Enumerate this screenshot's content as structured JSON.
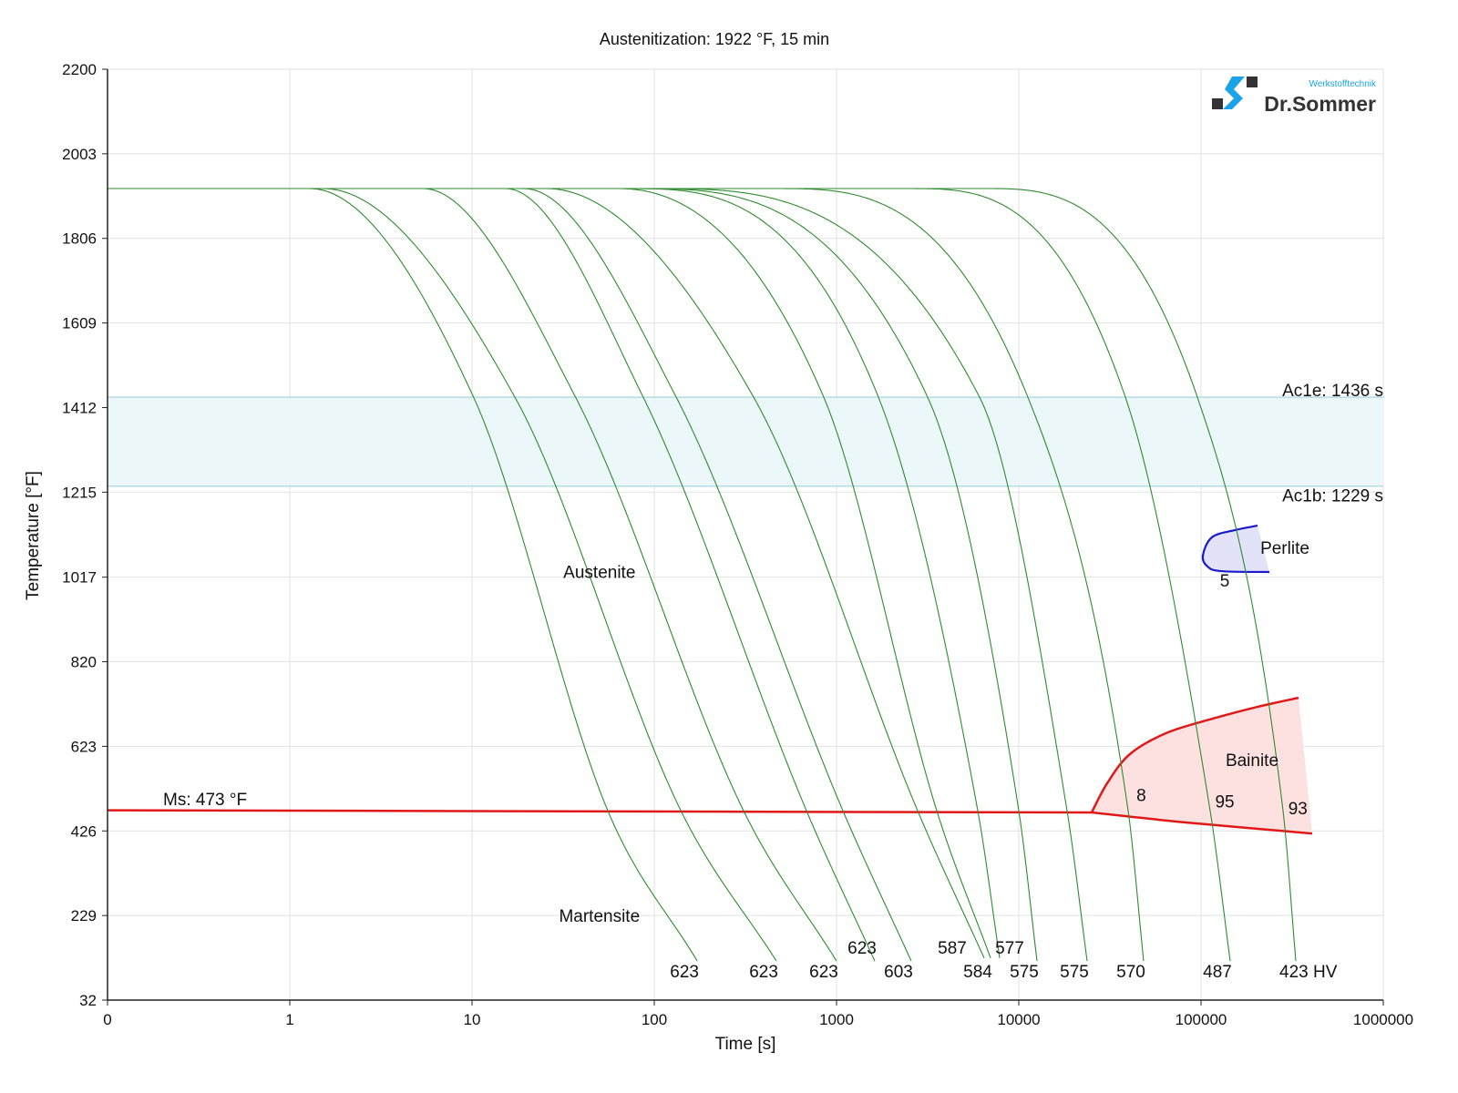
{
  "chart_data": {
    "type": "line",
    "title": "Austenitization: 1922 °F, 15 min",
    "xlabel": "Time [s]",
    "ylabel": "Temperature [°F]",
    "xscale": "log",
    "xlim": [
      0.1,
      1000000
    ],
    "ylim": [
      32,
      2200
    ],
    "grid": true,
    "x_ticks": [
      0.1,
      1,
      10,
      100,
      1000,
      10000,
      100000,
      1000000
    ],
    "x_tick_labels": [
      "0",
      "1",
      "10",
      "100",
      "1000",
      "10000",
      "100000",
      "1000000"
    ],
    "y_ticks": [
      32,
      229,
      426,
      623,
      820,
      1017,
      1215,
      1412,
      1609,
      1806,
      2003,
      2200
    ],
    "y_tick_labels": [
      "32",
      "229",
      "426",
      "623",
      "820",
      "1017",
      "1215",
      "1412",
      "1609",
      "1806",
      "2003",
      "2200"
    ],
    "austenitization_temp": 1922,
    "cooling_curves": [
      {
        "hardness": "623",
        "points": [
          [
            1.29,
            1922
          ],
          [
            10.2,
            1436
          ],
          [
            55.6,
            473
          ],
          [
            172,
            123
          ]
        ]
      },
      {
        "hardness": "623",
        "points": [
          [
            1.53,
            1922
          ],
          [
            17.2,
            1436
          ],
          [
            140,
            473
          ],
          [
            468,
            123
          ]
        ]
      },
      {
        "hardness": "623",
        "points": [
          [
            5.4,
            1922
          ],
          [
            37,
            1436
          ],
          [
            309,
            473
          ],
          [
            1000,
            123
          ]
        ]
      },
      {
        "hardness": "623",
        "points": [
          [
            15.3,
            1922
          ],
          [
            87,
            1436
          ],
          [
            684,
            473
          ],
          [
            1622,
            123
          ]
        ]
      },
      {
        "hardness": "603",
        "points": [
          [
            19.3,
            1922
          ],
          [
            132,
            1436
          ],
          [
            1084,
            473
          ],
          [
            2570,
            123
          ]
        ]
      },
      {
        "hardness": "587",
        "points": [
          [
            25.7,
            1922
          ],
          [
            351,
            1436
          ],
          [
            2786,
            473
          ],
          [
            6457,
            130
          ]
        ]
      },
      {
        "hardness": "584",
        "points": [
          [
            64.6,
            1922
          ],
          [
            851,
            1436
          ],
          [
            3548,
            473
          ],
          [
            7000,
            130
          ]
        ]
      },
      {
        "hardness": "577",
        "points": [
          [
            72.4,
            1922
          ],
          [
            1698,
            1436
          ],
          [
            5957,
            473
          ],
          [
            7852,
            130
          ]
        ]
      },
      {
        "hardness": "575",
        "points": [
          [
            81.3,
            1922
          ],
          [
            3162,
            1436
          ],
          [
            10000,
            473
          ],
          [
            12589,
            123
          ]
        ]
      },
      {
        "hardness": "575",
        "points": [
          [
            102,
            1922
          ],
          [
            6095,
            1436
          ],
          [
            18408,
            473
          ],
          [
            23714,
            123
          ]
        ]
      },
      {
        "hardness": "570",
        "points": [
          [
            513,
            1922
          ],
          [
            11220,
            1436
          ],
          [
            39811,
            473
          ],
          [
            48417,
            123
          ]
        ]
      },
      {
        "hardness": "487",
        "points": [
          [
            2570,
            1922
          ],
          [
            38459,
            1436
          ],
          [
            112202,
            473
          ],
          [
            144544,
            123
          ]
        ]
      },
      {
        "hardness": "423 HV",
        "points": [
          [
            7244,
            1922
          ],
          [
            95499,
            1436
          ],
          [
            281838,
            473
          ],
          [
            331131,
            123
          ]
        ]
      }
    ],
    "ac1e": {
      "label": "Ac1e: 1436 s",
      "temp": 1436
    },
    "ac1b": {
      "label": "Ac1b: 1229 s",
      "temp": 1229
    },
    "ms": {
      "label": "Ms: 473 °F",
      "points": [
        [
          0.1,
          474
        ],
        [
          25119,
          469
        ]
      ]
    },
    "bainite": {
      "label": "Bainite",
      "upper": [
        [
          25119,
          469
        ],
        [
          30549,
          537
        ],
        [
          40738,
          605
        ],
        [
          64565,
          654
        ],
        [
          114815,
          687
        ],
        [
          204174,
          715
        ],
        [
          342768,
          736
        ]
      ],
      "lower": [
        [
          25119,
          469
        ],
        [
          81283,
          446
        ],
        [
          407380,
          420
        ]
      ]
    },
    "perlite": {
      "label": "Perlite",
      "outline": [
        [
          204174,
          1137
        ],
        [
          155000,
          1127
        ],
        [
          114815,
          1110
        ],
        [
          102329,
          1067
        ],
        [
          108393,
          1042
        ],
        [
          128825,
          1031
        ],
        [
          237137,
          1029
        ]
      ]
    },
    "phase_labels": [
      {
        "text": "Austenite",
        "t": 50,
        "T": 1030
      },
      {
        "text": "Martensite",
        "t": 50,
        "T": 229
      }
    ],
    "percent_labels": [
      {
        "text": "5",
        "t": 135000,
        "T": 1010
      },
      {
        "text": "8",
        "t": 47000,
        "T": 510
      },
      {
        "text": "95",
        "t": 135000,
        "T": 495
      },
      {
        "text": "93",
        "t": 340000,
        "T": 480
      }
    ],
    "colors": {
      "curve": "#2e8b2e",
      "ms": "#e01818",
      "bainite_fill": "#fde0e0",
      "perlite_line": "#1a1acc",
      "perlite_fill": "#e2e2f8",
      "band_fill": "#ecf7f9",
      "band_line": "#b6dbe3",
      "grid": "#e2e2e2"
    }
  },
  "logo": {
    "brand": "Dr.Sommer",
    "tagline": "Werkstofftechnik"
  }
}
